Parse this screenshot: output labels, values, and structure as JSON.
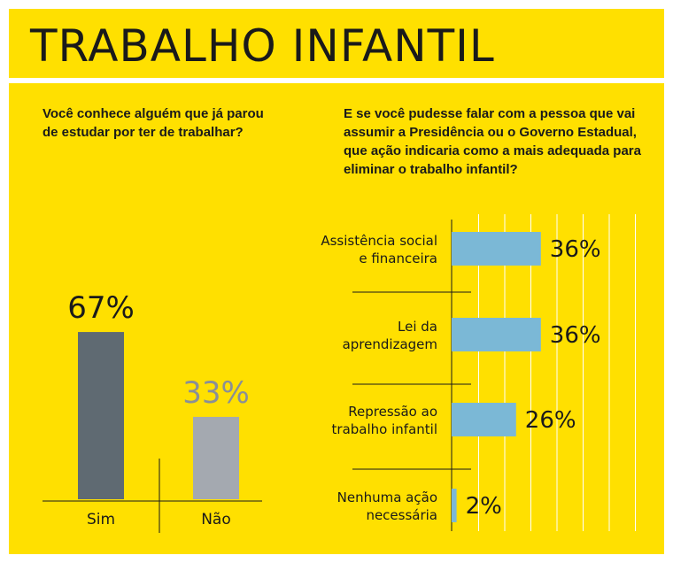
{
  "header": {
    "title": "TRABALHO INFANTIL"
  },
  "colors": {
    "background": "#FFE000",
    "bar_sim": "#5F6A72",
    "bar_nao": "#A4A9B0",
    "bar_horizontal": "#7BB8D6",
    "gridline": "#ffffff"
  },
  "left": {
    "question": "Você conhece alguém que já parou de estudar por ter de trabalhar?"
  },
  "right": {
    "question": "E se você pudesse falar com a pessoa que vai assumir a Presidência ou o Governo Estadual, que ação indicaria como a mais adequada para eliminar o trabalho infantil?"
  },
  "chart_data": [
    {
      "type": "bar",
      "categories": [
        "Sim",
        "Não"
      ],
      "values": [
        67,
        33
      ],
      "value_labels": [
        "67%",
        "33%"
      ],
      "ylim": [
        0,
        100
      ]
    },
    {
      "type": "bar",
      "orientation": "horizontal",
      "categories": [
        [
          "Assistência social",
          "e financeira"
        ],
        [
          "Lei da",
          "aprendizagem"
        ],
        [
          "Repressão ao",
          "trabalho infantil"
        ],
        [
          "Nenhuma ação",
          "necessária"
        ]
      ],
      "values": [
        36,
        36,
        26,
        2
      ],
      "value_labels": [
        "36%",
        "36%",
        "26%",
        "2%"
      ],
      "xlim": [
        0,
        100
      ],
      "grid": true
    }
  ]
}
